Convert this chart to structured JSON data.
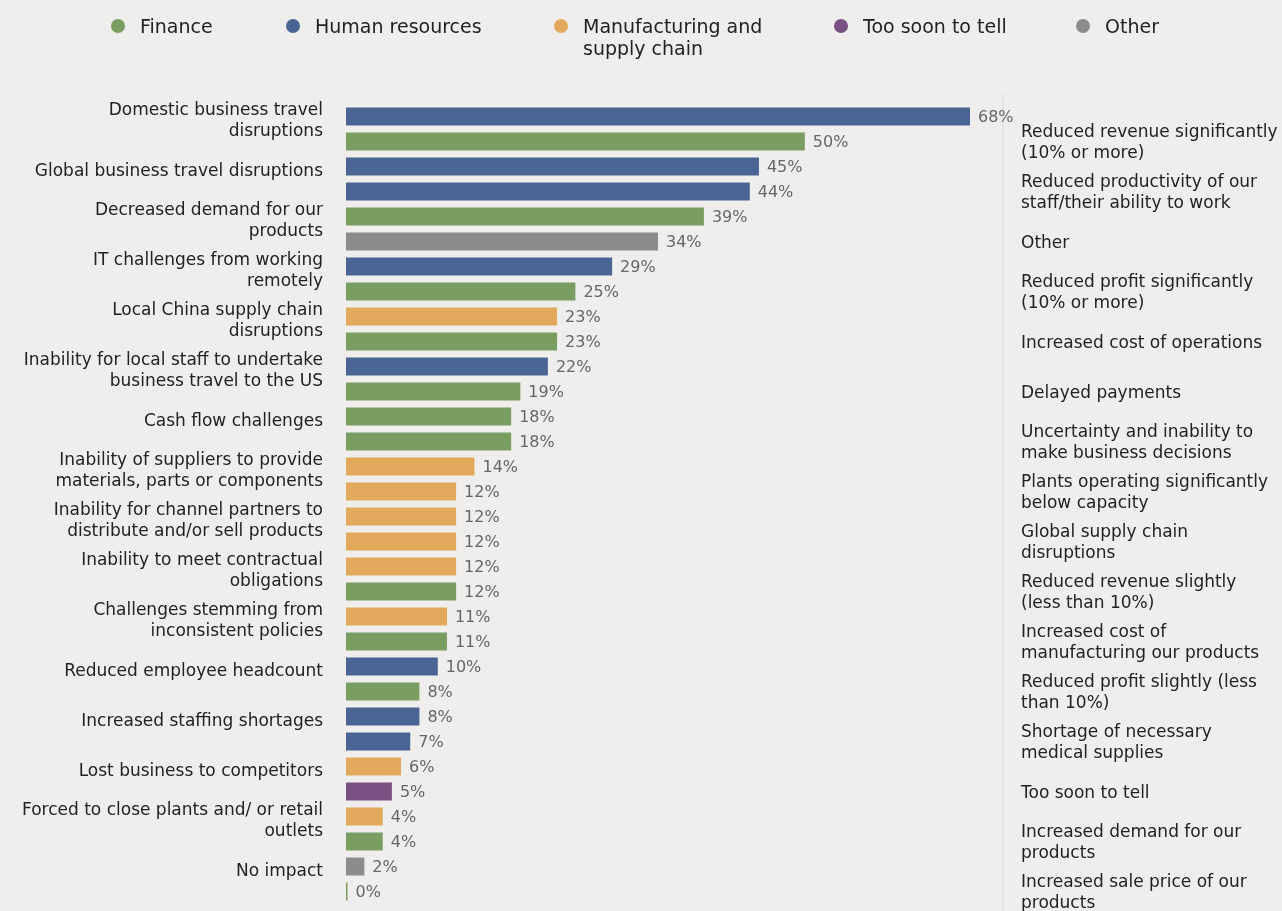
{
  "chart_data": {
    "type": "bar",
    "orientation": "horizontal",
    "data_labels": true,
    "legend": "top",
    "categories": [
      "Domestic business travel disruptions",
      null,
      "Global business travel disruptions",
      null,
      "Decreased demand for our products",
      null,
      "IT challenges from working remotely",
      null,
      "Local China supply chain disruptions",
      null,
      "Inability for local staff to undertake business travel to the US",
      null,
      "Cash flow challenges",
      null,
      "Inability of suppliers to provide materials, parts or components",
      null,
      "Inability for channel partners to distribute and/or sell products",
      null,
      "Inability to meet contractual obligations",
      null,
      "Challenges stemming from inconsistent policies",
      null,
      "Reduced employee headcount",
      null,
      "Increased staffing shortages",
      null,
      "Lost business to competitors",
      null,
      "Forced to close plants and/ or retail outlets",
      null,
      "No impact",
      null
    ],
    "annotations": [
      "Reduced revenue significantly (10% or more)",
      "Reduced productivity of our staff/their ability to work",
      "Other",
      "Reduced profit significantly (10% or more)",
      "Increased cost of operations",
      "Delayed payments",
      "Uncertainty and inability to make business decisions",
      "Plants operating significantly below capacity",
      "Global supply chain disruptions",
      "Reduced revenue slightly (less than 10%)",
      "Increased cost of manufacturing our products",
      "Reduced profit slightly (less than 10%)",
      "Shortage of necessary medical supplies",
      "Too soon to tell",
      "Increased demand for our products",
      "Increased sale price of our products"
    ],
    "series": [
      {
        "name": "Finance",
        "color": "#7a9e62",
        "values": [
          null,
          50,
          null,
          null,
          39,
          null,
          null,
          25,
          null,
          23,
          null,
          19,
          18,
          18,
          null,
          null,
          null,
          null,
          null,
          12,
          null,
          11,
          null,
          8,
          null,
          null,
          null,
          null,
          null,
          4,
          null,
          0
        ],
        "value_labels": [
          null,
          "50%",
          null,
          null,
          "39%",
          null,
          null,
          "25%",
          null,
          "23%",
          null,
          "19%",
          "18%",
          "18%",
          null,
          null,
          null,
          null,
          null,
          "12%",
          null,
          "11%",
          null,
          "8%",
          null,
          null,
          null,
          null,
          null,
          "4%",
          null,
          "0%"
        ]
      },
      {
        "name": "Human resources",
        "color": "#4a6494",
        "values": [
          68,
          null,
          45,
          44,
          null,
          null,
          29,
          null,
          null,
          null,
          22,
          null,
          null,
          null,
          null,
          null,
          null,
          null,
          null,
          null,
          null,
          null,
          10,
          null,
          8,
          7,
          null,
          null,
          null,
          null,
          null,
          null
        ],
        "value_labels": [
          "68%",
          null,
          "45%",
          "44%",
          null,
          null,
          "29%",
          null,
          null,
          null,
          "22%",
          null,
          null,
          null,
          null,
          null,
          null,
          null,
          null,
          null,
          null,
          null,
          "10%",
          null,
          "8%",
          "7%",
          null,
          null,
          null,
          null,
          null,
          null
        ]
      },
      {
        "name": "Manufacturing and supply chain",
        "color": "#e2a95c",
        "values": [
          null,
          null,
          null,
          null,
          null,
          null,
          null,
          null,
          23,
          null,
          null,
          null,
          null,
          null,
          14,
          12,
          12,
          12,
          12,
          null,
          11,
          null,
          null,
          null,
          null,
          null,
          6,
          null,
          4,
          null,
          null,
          null
        ],
        "value_labels": [
          null,
          null,
          null,
          null,
          null,
          null,
          null,
          null,
          "23%",
          null,
          null,
          null,
          null,
          null,
          "14%",
          "12%",
          "12%",
          "12%",
          "12%",
          null,
          "11%",
          null,
          null,
          null,
          null,
          null,
          "6%",
          null,
          "4%",
          null,
          null,
          null
        ]
      },
      {
        "name": "Too soon to tell",
        "color": "#7a5082",
        "values": [
          null,
          null,
          null,
          null,
          null,
          null,
          null,
          null,
          null,
          null,
          null,
          null,
          null,
          null,
          null,
          null,
          null,
          null,
          null,
          null,
          null,
          null,
          null,
          null,
          null,
          null,
          null,
          5,
          null,
          null,
          null,
          null
        ],
        "value_labels": [
          null,
          null,
          null,
          null,
          null,
          null,
          null,
          null,
          null,
          null,
          null,
          null,
          null,
          null,
          null,
          null,
          null,
          null,
          null,
          null,
          null,
          null,
          null,
          null,
          null,
          null,
          null,
          "5%",
          null,
          null,
          null,
          null
        ]
      },
      {
        "name": "Other",
        "color": "#8c8c8c",
        "values": [
          null,
          null,
          null,
          null,
          null,
          34,
          null,
          null,
          null,
          null,
          null,
          null,
          null,
          null,
          null,
          null,
          null,
          null,
          null,
          null,
          null,
          null,
          null,
          null,
          null,
          null,
          null,
          null,
          null,
          null,
          2,
          null
        ],
        "value_labels": [
          null,
          null,
          null,
          null,
          null,
          "34%",
          null,
          null,
          null,
          null,
          null,
          null,
          null,
          null,
          null,
          null,
          null,
          null,
          null,
          null,
          null,
          null,
          null,
          null,
          null,
          null,
          null,
          null,
          null,
          null,
          "2%",
          null
        ]
      }
    ]
  }
}
